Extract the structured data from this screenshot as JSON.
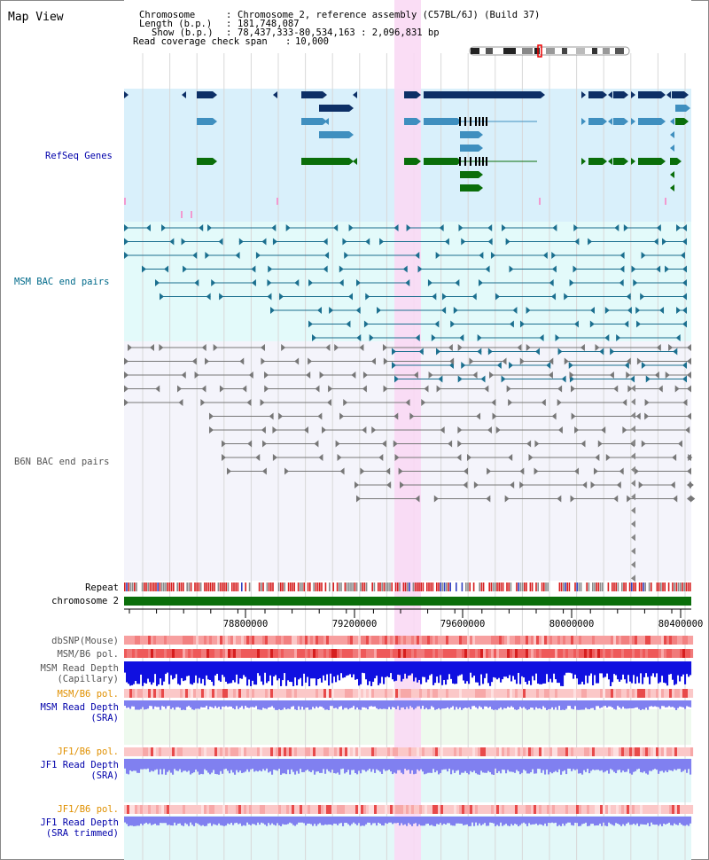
{
  "title": "Map View",
  "info": {
    "chromosome_label": "Chromosome",
    "chromosome_value": "Chromosome 2, reference assembly (C57BL/6J) (Build 37)",
    "length_label": "Length (b.p.)",
    "length_value": "181,748,087",
    "show_label": "Show (b.p.)",
    "show_value": "78,437,333-80,534,163 : 2,096,831 bp",
    "span_label": "Read coverage check span",
    "span_value": "10,000"
  },
  "tracks": {
    "refseq": "RefSeq Genes",
    "msm_bac": "MSM BAC end pairs",
    "b6n_bac": "B6N BAC end pairs",
    "repeat": "Repeat",
    "chromosome": "chromosome 2",
    "dbsnp": "dbSNP(Mouse)",
    "msm_b6_pol_1": "MSM/B6 pol.",
    "msm_read_depth_cap_1": "MSM Read Depth",
    "msm_read_depth_cap_2": "(Capillary)",
    "msm_b6_pol_2": "MSM/B6 pol.",
    "msm_read_depth_sra_1": "MSM Read Depth",
    "msm_read_depth_sra_2": "(SRA)",
    "jf1_b6_pol_1": "JF1/B6 pol.",
    "jf1_read_depth_1": "JF1 Read Depth",
    "jf1_read_depth_2": "(SRA)",
    "jf1_b6_pol_2": "JF1/B6 pol.",
    "jf1_trim_1": "JF1 Read Depth",
    "jf1_trim_2": "(SRA trimmed)"
  },
  "axis": {
    "ticks": [
      "78800000",
      "79200000",
      "79600000",
      "80000000",
      "80400000"
    ]
  },
  "colors": {
    "refseq_bg": "#d9f0fb",
    "msm_bg": "#e3fafa",
    "b6n_bg": "#f4f4fb",
    "highlight": "#f9d9f4",
    "gene_dark": "#0d2f66",
    "gene_mid": "#3f8fbf",
    "gene_green": "#0a6e0a",
    "bac_msm": "#1b6f8f",
    "bac_b6n": "#777777",
    "depth_blue": "#1010e0",
    "depth_light": "#8080f0",
    "label_blue": "#0000aa",
    "label_teal": "#006a8a",
    "label_orange": "#e09000"
  }
}
